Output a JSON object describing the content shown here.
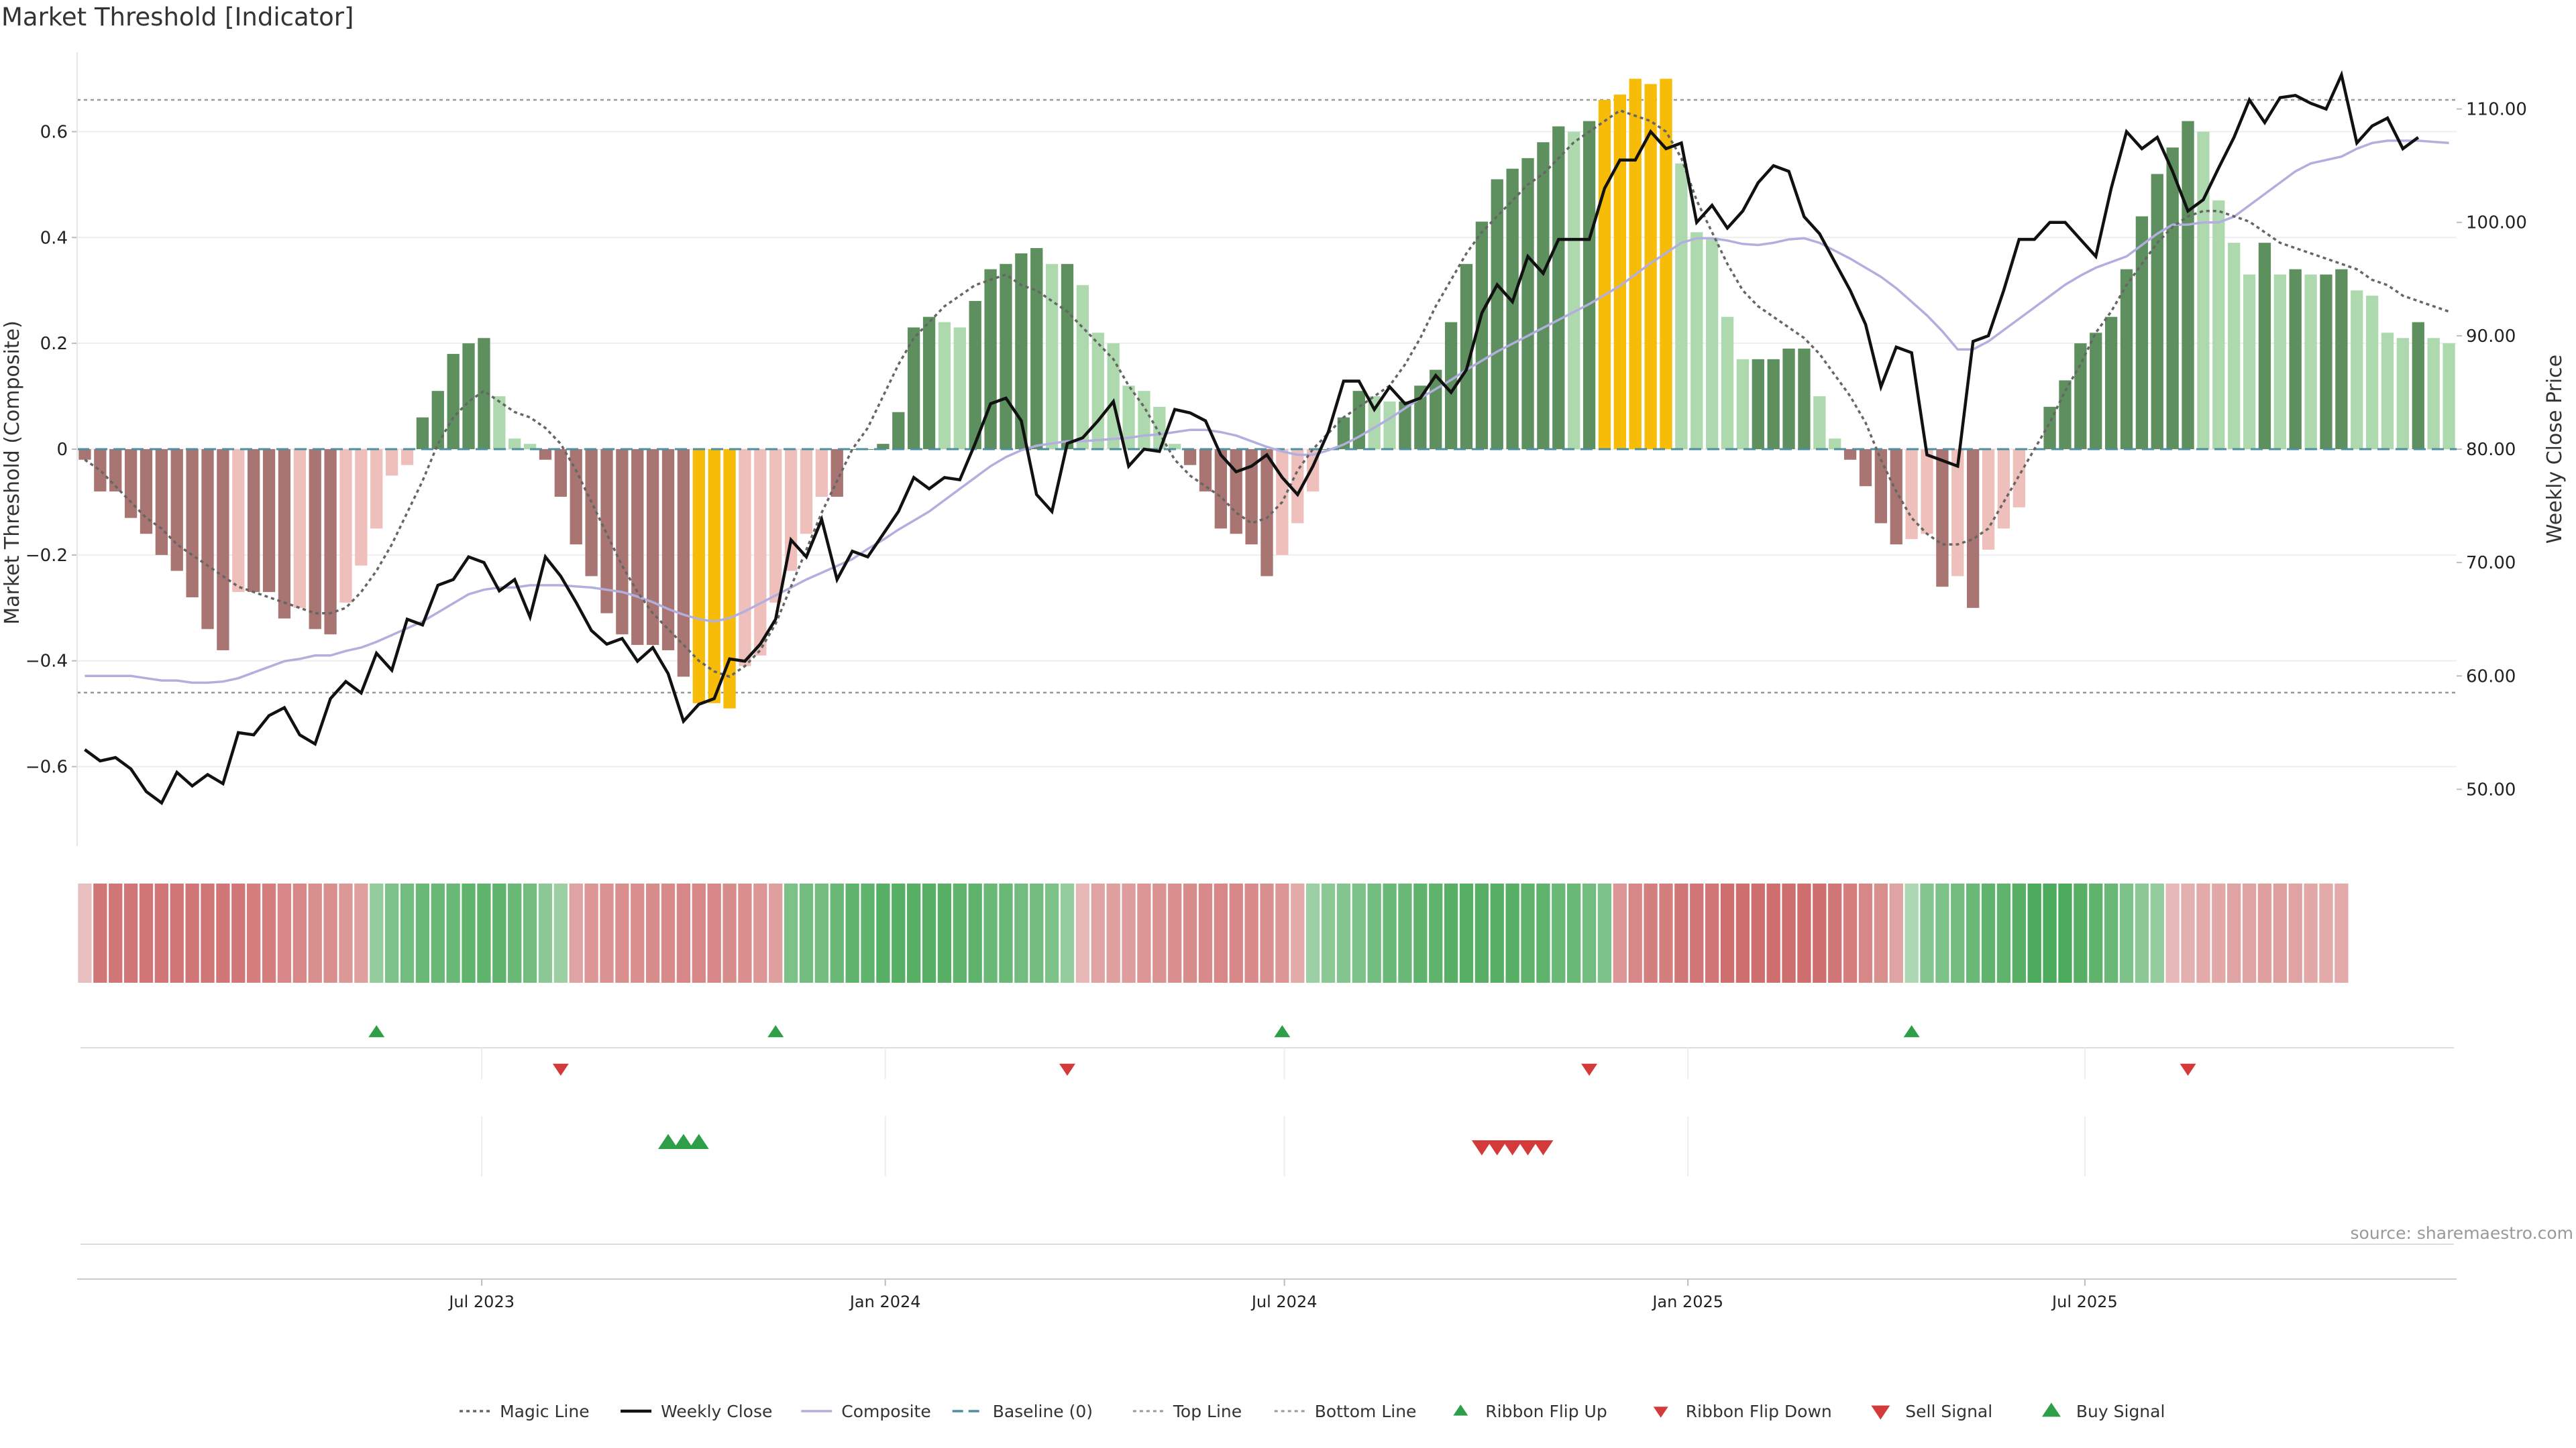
{
  "title": "Market Threshold [Indicator]",
  "source": "source: sharemaestro.com",
  "colors": {
    "bar_pos_strong": "#5e8f5e",
    "bar_pos_weak": "#aed9ae",
    "bar_neg_strong": "#a87572",
    "bar_neg_weak": "#efc0bb",
    "bar_extreme": "#f7bc07",
    "weekly_close": "#111111",
    "composite": "#b2aede",
    "magic_line": "#666666",
    "baseline": "#4f8f9f",
    "threshold_line": "#999999",
    "signal_up": "#2e9e48",
    "signal_down": "#d43a3a"
  },
  "chart_data": {
    "type": "bar",
    "x_start": "2023-01-01",
    "x_step_days": 7,
    "x_ticks": [
      {
        "date": "2023-07-01",
        "label": "Jul 2023"
      },
      {
        "date": "2024-01-01",
        "label": "Jan 2024"
      },
      {
        "date": "2024-07-01",
        "label": "Jul 2024"
      },
      {
        "date": "2025-01-01",
        "label": "Jan 2025"
      },
      {
        "date": "2025-07-01",
        "label": "Jul 2025"
      }
    ],
    "y_left": {
      "label": "Market Threshold (Composite)",
      "range": [
        -0.75,
        0.75
      ],
      "ticks": [
        -0.6,
        -0.4,
        -0.2,
        0,
        0.2,
        0.4,
        0.6
      ],
      "tick_labels": [
        "−0.6",
        "−0.4",
        "−0.2",
        "0",
        "0.2",
        "0.4",
        "0.6"
      ]
    },
    "y_right": {
      "label": "Weekly Close Price",
      "range": [
        45,
        115
      ],
      "ticks": [
        50,
        60,
        70,
        80,
        90,
        100,
        110
      ],
      "tick_labels": [
        "50.00",
        "60.00",
        "70.00",
        "80.00",
        "90.00",
        "100.00",
        "110.00"
      ]
    },
    "top_line": 0.66,
    "bottom_line": -0.46,
    "composite": [
      -0.02,
      -0.08,
      -0.08,
      -0.13,
      -0.16,
      -0.2,
      -0.23,
      -0.28,
      -0.34,
      -0.38,
      -0.27,
      -0.27,
      -0.27,
      -0.32,
      -0.3,
      -0.34,
      -0.35,
      -0.29,
      -0.22,
      -0.15,
      -0.05,
      -0.03,
      0.06,
      0.11,
      0.18,
      0.2,
      0.21,
      0.1,
      0.02,
      0.01,
      -0.02,
      -0.09,
      -0.18,
      -0.24,
      -0.31,
      -0.35,
      -0.37,
      -0.37,
      -0.38,
      -0.43,
      -0.48,
      -0.48,
      -0.49,
      -0.41,
      -0.39,
      -0.29,
      -0.23,
      -0.16,
      -0.09,
      -0.09,
      0,
      0,
      0.01,
      0.07,
      0.23,
      0.25,
      0.24,
      0.23,
      0.28,
      0.34,
      0.35,
      0.37,
      0.38,
      0.35,
      0.35,
      0.31,
      0.22,
      0.2,
      0.12,
      0.11,
      0.08,
      0.01,
      -0.03,
      -0.08,
      -0.15,
      -0.16,
      -0.18,
      -0.24,
      -0.2,
      -0.14,
      -0.08,
      0,
      0.06,
      0.11,
      0.1,
      0.09,
      0.09,
      0.12,
      0.15,
      0.24,
      0.35,
      0.43,
      0.51,
      0.53,
      0.55,
      0.58,
      0.61,
      0.6,
      0.62,
      0.66,
      0.67,
      0.7,
      0.69,
      0.7,
      0.54,
      0.41,
      0.4,
      0.25,
      0.17,
      0.17,
      0.17,
      0.19,
      0.19,
      0.1,
      0.02,
      -0.02,
      -0.07,
      -0.14,
      -0.18,
      -0.17,
      -0.16,
      -0.26,
      -0.24,
      -0.3,
      -0.19,
      -0.15,
      -0.11,
      0,
      0.08,
      0.13,
      0.2,
      0.22,
      0.25,
      0.34,
      0.44,
      0.52,
      0.57,
      0.62,
      0.6,
      0.47,
      0.39,
      0.33,
      0.39,
      0.33,
      0.34,
      0.33,
      0.33,
      0.34,
      0.3,
      0.29,
      0.22,
      0.21,
      0.24,
      0.21,
      0.2
    ],
    "weekly_close": [
      53.5,
      52.5,
      52.8,
      51.8,
      49.8,
      48.8,
      51.5,
      50.3,
      51.3,
      50.5,
      55,
      54.8,
      56.5,
      57.2,
      54.8,
      54,
      58,
      59.5,
      58.5,
      62,
      60.5,
      65,
      64.5,
      68,
      68.5,
      70.5,
      70,
      67.5,
      68.5,
      65.2,
      70.5,
      68.8,
      66.5,
      64,
      62.8,
      63.3,
      61.3,
      62.5,
      60.2,
      56,
      57.5,
      58,
      61.5,
      61.3,
      62.8,
      65,
      72,
      70.5,
      73.8,
      68.5,
      71,
      70.5,
      72.5,
      74.5,
      77.5,
      76.5,
      77.5,
      77.3,
      80.5,
      84,
      84.5,
      82.5,
      76,
      74.5,
      80.5,
      81,
      82.5,
      84.2,
      78.5,
      80,
      79.8,
      83.5,
      83.2,
      82.5,
      79.5,
      78,
      78.5,
      79.5,
      77.5,
      76,
      78.5,
      81.5,
      86,
      86,
      83.5,
      85.5,
      84,
      84.5,
      86.5,
      85,
      87,
      92,
      94.5,
      93,
      97,
      95.5,
      98.5,
      98.5,
      98.5,
      103,
      105.5,
      105.5,
      108,
      106.5,
      107,
      100,
      101.5,
      99.5,
      101,
      103.5,
      105,
      104.5,
      100.5,
      99,
      96.5,
      94,
      91,
      85.5,
      89,
      88.5,
      79.5,
      79,
      78.5,
      89.5,
      90,
      94,
      98.5,
      98.5,
      100,
      100,
      98.5,
      97,
      103,
      108,
      106.5,
      107.5,
      104.5,
      101,
      102,
      104.8,
      107.5,
      110.8,
      108.8,
      111,
      111.2,
      110.5,
      110,
      113,
      107,
      108.5,
      109.2,
      106.5,
      107.5
    ],
    "composite_line": [
      60,
      60,
      60,
      60,
      59.8,
      59.6,
      59.6,
      59.4,
      59.4,
      59.5,
      59.8,
      60.3,
      60.8,
      61.3,
      61.5,
      61.8,
      61.8,
      62.2,
      62.5,
      63,
      63.6,
      64.2,
      64.8,
      65.6,
      66.4,
      67.2,
      67.6,
      67.8,
      67.8,
      68,
      68,
      68,
      67.9,
      67.8,
      67.6,
      67.4,
      67,
      66.5,
      65.9,
      65.4,
      65,
      64.8,
      65.1,
      65.7,
      66.4,
      67.1,
      67.8,
      68.5,
      69.1,
      69.7,
      70.3,
      71.2,
      72,
      72.9,
      73.7,
      74.5,
      75.5,
      76.5,
      77.5,
      78.5,
      79.3,
      79.9,
      80.3,
      80.5,
      80.7,
      80.7,
      80.8,
      80.9,
      81,
      81.2,
      81.3,
      81.5,
      81.7,
      81.7,
      81.5,
      81.2,
      80.7,
      80.2,
      79.8,
      79.5,
      79.5,
      79.9,
      80.4,
      81.1,
      81.9,
      82.7,
      83.6,
      84.5,
      85.3,
      86.1,
      87,
      87.8,
      88.6,
      89.3,
      90,
      90.7,
      91.4,
      92.1,
      92.8,
      93.6,
      94.4,
      95.4,
      96.4,
      97.3,
      98.2,
      98.6,
      98.6,
      98.4,
      98.1,
      98,
      98.2,
      98.5,
      98.6,
      98.2,
      97.5,
      96.8,
      96,
      95.2,
      94.2,
      93,
      91.8,
      90.4,
      88.8,
      88.8,
      89.5,
      90.5,
      91.5,
      92.5,
      93.5,
      94.5,
      95.3,
      96,
      96.5,
      97,
      98,
      99,
      99.8,
      99.8,
      100,
      100,
      100.5,
      101.5,
      102.5,
      103.5,
      104.5,
      105.2,
      105.5,
      105.8,
      106.5,
      107,
      107.2,
      107.2,
      107.2,
      107.1,
      107
    ],
    "magic_line": [
      -0.02,
      -0.04,
      -0.07,
      -0.1,
      -0.13,
      -0.15,
      -0.18,
      -0.2,
      -0.22,
      -0.24,
      -0.26,
      -0.27,
      -0.28,
      -0.29,
      -0.3,
      -0.31,
      -0.31,
      -0.3,
      -0.27,
      -0.23,
      -0.18,
      -0.12,
      -0.06,
      0.01,
      0.06,
      0.09,
      0.11,
      0.09,
      0.07,
      0.06,
      0.04,
      0.01,
      -0.04,
      -0.1,
      -0.16,
      -0.22,
      -0.27,
      -0.31,
      -0.34,
      -0.37,
      -0.4,
      -0.42,
      -0.43,
      -0.41,
      -0.38,
      -0.33,
      -0.26,
      -0.19,
      -0.12,
      -0.06,
      0,
      0.04,
      0.1,
      0.16,
      0.21,
      0.24,
      0.27,
      0.29,
      0.31,
      0.32,
      0.33,
      0.31,
      0.3,
      0.28,
      0.26,
      0.23,
      0.2,
      0.17,
      0.12,
      0.08,
      0.03,
      -0.02,
      -0.05,
      -0.07,
      -0.09,
      -0.12,
      -0.14,
      -0.13,
      -0.1,
      -0.04,
      0,
      0.03,
      0.06,
      0.08,
      0.1,
      0.12,
      0.16,
      0.21,
      0.27,
      0.32,
      0.37,
      0.41,
      0.44,
      0.47,
      0.5,
      0.52,
      0.55,
      0.58,
      0.6,
      0.62,
      0.64,
      0.63,
      0.62,
      0.6,
      0.55,
      0.47,
      0.41,
      0.35,
      0.3,
      0.27,
      0.25,
      0.23,
      0.21,
      0.18,
      0.14,
      0.1,
      0.05,
      -0.02,
      -0.08,
      -0.13,
      -0.16,
      -0.18,
      -0.18,
      -0.17,
      -0.15,
      -0.1,
      -0.05,
      0,
      0.05,
      0.11,
      0.16,
      0.22,
      0.26,
      0.31,
      0.35,
      0.39,
      0.42,
      0.44,
      0.45,
      0.45,
      0.44,
      0.43,
      0.41,
      0.39,
      0.38,
      0.37,
      0.36,
      0.35,
      0.34,
      0.32,
      0.31,
      0.29,
      0.28,
      0.27,
      0.26
    ],
    "ribbon": [
      -0.25,
      -0.78,
      -0.78,
      -0.78,
      -0.78,
      -0.78,
      -0.78,
      -0.78,
      -0.78,
      -0.78,
      -0.78,
      -0.72,
      -0.72,
      -0.66,
      -0.66,
      -0.6,
      -0.6,
      -0.54,
      -0.48,
      0.45,
      0.6,
      0.66,
      0.72,
      0.72,
      0.72,
      0.78,
      0.78,
      0.78,
      0.72,
      0.66,
      0.5,
      0.4,
      -0.45,
      -0.55,
      -0.58,
      -0.6,
      -0.6,
      -0.62,
      -0.64,
      -0.66,
      -0.66,
      -0.66,
      -0.62,
      -0.6,
      -0.55,
      -0.48,
      0.6,
      0.66,
      0.66,
      0.72,
      0.78,
      0.78,
      0.84,
      0.84,
      0.84,
      0.84,
      0.84,
      0.78,
      0.78,
      0.72,
      0.72,
      0.66,
      0.66,
      0.6,
      0.45,
      -0.3,
      -0.45,
      -0.48,
      -0.5,
      -0.55,
      -0.58,
      -0.6,
      -0.62,
      -0.64,
      -0.66,
      -0.66,
      -0.64,
      -0.6,
      -0.55,
      -0.4,
      0.4,
      0.5,
      0.55,
      0.6,
      0.66,
      0.72,
      0.72,
      0.78,
      0.78,
      0.84,
      0.84,
      0.84,
      0.84,
      0.84,
      0.78,
      0.78,
      0.72,
      0.72,
      0.66,
      0.6,
      -0.55,
      -0.66,
      -0.72,
      -0.72,
      -0.78,
      -0.78,
      -0.78,
      -0.84,
      -0.84,
      -0.84,
      -0.84,
      -0.84,
      -0.84,
      -0.84,
      -0.78,
      -0.72,
      -0.66,
      -0.6,
      -0.45,
      0.3,
      0.55,
      0.6,
      0.66,
      0.72,
      0.78,
      0.78,
      0.84,
      0.9,
      0.9,
      0.9,
      0.84,
      0.78,
      0.72,
      0.6,
      0.5,
      0.45,
      -0.3,
      -0.36,
      -0.4,
      -0.42,
      -0.45,
      -0.45,
      -0.48,
      -0.48,
      -0.45,
      -0.42,
      -0.4,
      -0.4
    ],
    "ribbon_flip_up": [
      19,
      45,
      78,
      119
    ],
    "ribbon_flip_down": [
      31,
      64,
      98,
      137
    ],
    "buy_signal": [
      38,
      39,
      40
    ],
    "sell_signal": [
      91,
      92,
      93,
      94,
      95
    ],
    "legend": {
      "placement": "bottom-center",
      "entries": [
        {
          "key": "magic",
          "label": "Magic Line"
        },
        {
          "key": "close",
          "label": "Weekly Close"
        },
        {
          "key": "composite",
          "label": "Composite"
        },
        {
          "key": "baseline",
          "label": "Baseline (0)"
        },
        {
          "key": "top",
          "label": "Top Line"
        },
        {
          "key": "bottom",
          "label": "Bottom Line"
        },
        {
          "key": "flip_up",
          "label": "Ribbon Flip Up"
        },
        {
          "key": "flip_down",
          "label": "Ribbon Flip Down"
        },
        {
          "key": "sell",
          "label": "Sell Signal"
        },
        {
          "key": "buy",
          "label": "Buy Signal"
        }
      ]
    }
  }
}
